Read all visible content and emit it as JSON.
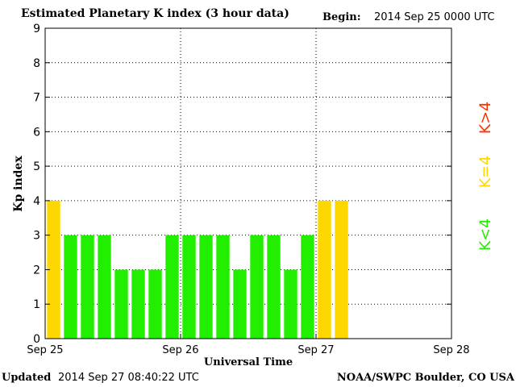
{
  "header": {
    "title": "Estimated Planetary K index (3 hour data)",
    "begin_label": "Begin:",
    "begin_value": "2014 Sep 25 0000 UTC"
  },
  "footer": {
    "updated_label": "Updated",
    "updated_value": "2014 Sep 27 08:40:22 UTC",
    "org": "NOAA/SWPC Boulder, CO USA"
  },
  "colors": {
    "below": "#22ee00",
    "equal": "#ffd700",
    "above": "#ff3300",
    "axis": "#000000"
  },
  "legend": {
    "placement": "right",
    "entries": [
      {
        "label": "K>4",
        "color_key": "above"
      },
      {
        "label": "K=4",
        "color_key": "equal"
      },
      {
        "label": "K<4",
        "color_key": "below"
      }
    ]
  },
  "chart_data": {
    "type": "bar",
    "title": "Estimated Planetary K index (3 hour data)",
    "xlabel": "Universal Time",
    "ylabel": "Kp index",
    "ylim": [
      0,
      9
    ],
    "yticks": [
      0,
      1,
      2,
      3,
      4,
      5,
      6,
      7,
      8,
      9
    ],
    "xlim_slots": [
      0,
      24
    ],
    "xtick_labels": [
      "Sep 25",
      "Sep 26",
      "Sep 27",
      "Sep 28"
    ],
    "xtick_slots": [
      0,
      8,
      16,
      24
    ],
    "grid": true,
    "categories": [
      "Sep 25 00",
      "Sep 25 03",
      "Sep 25 06",
      "Sep 25 09",
      "Sep 25 12",
      "Sep 25 15",
      "Sep 25 18",
      "Sep 25 21",
      "Sep 26 00",
      "Sep 26 03",
      "Sep 26 06",
      "Sep 26 09",
      "Sep 26 12",
      "Sep 26 15",
      "Sep 26 18",
      "Sep 26 21",
      "Sep 27 00",
      "Sep 27 03"
    ],
    "values": [
      4,
      3,
      3,
      3,
      2,
      2,
      2,
      3,
      3,
      3,
      3,
      2,
      3,
      3,
      2,
      3,
      4,
      4
    ]
  }
}
